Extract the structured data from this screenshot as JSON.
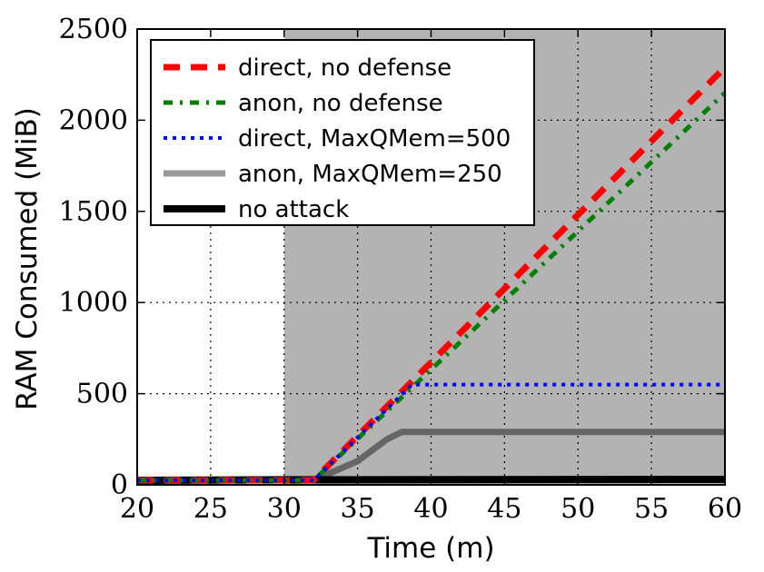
{
  "chart_data": {
    "type": "line",
    "xlabel": "Time (m)",
    "ylabel": "RAM Consumed (MiB)",
    "xlim": [
      20,
      60
    ],
    "ylim": [
      0,
      2500
    ],
    "xticks": [
      "20",
      "25",
      "30",
      "35",
      "40",
      "45",
      "50",
      "55",
      "60"
    ],
    "yticks": [
      "0",
      "500",
      "1000",
      "1500",
      "2000",
      "2500"
    ],
    "grid": true,
    "legend_position": "top-left",
    "shaded_region": {
      "x_start": 30,
      "x_end": 60,
      "color": "#b3b3b3"
    },
    "series": [
      {
        "name": "direct, no defense",
        "color": "#ff0000",
        "style": "dashed",
        "x": [
          20,
          32,
          60
        ],
        "y": [
          25,
          25,
          2290
        ]
      },
      {
        "name": "anon, no defense",
        "color": "#008000",
        "style": "dashdot",
        "x": [
          20,
          32,
          60
        ],
        "y": [
          25,
          25,
          2150
        ]
      },
      {
        "name": "direct, MaxQMem=500",
        "color": "#0000ff",
        "style": "dotted",
        "x": [
          20,
          32,
          38.7,
          60
        ],
        "y": [
          25,
          25,
          550,
          550
        ]
      },
      {
        "name": "anon, MaxQMem=250",
        "color": "#999999",
        "overlay_color": "#666666",
        "style": "solid",
        "x": [
          20,
          32,
          35,
          37,
          38,
          60
        ],
        "y": [
          25,
          25,
          130,
          250,
          290,
          290
        ]
      },
      {
        "name": "no attack",
        "color": "#000000",
        "style": "solid",
        "x": [
          20,
          30,
          60
        ],
        "y": [
          25,
          28,
          30
        ]
      }
    ]
  }
}
